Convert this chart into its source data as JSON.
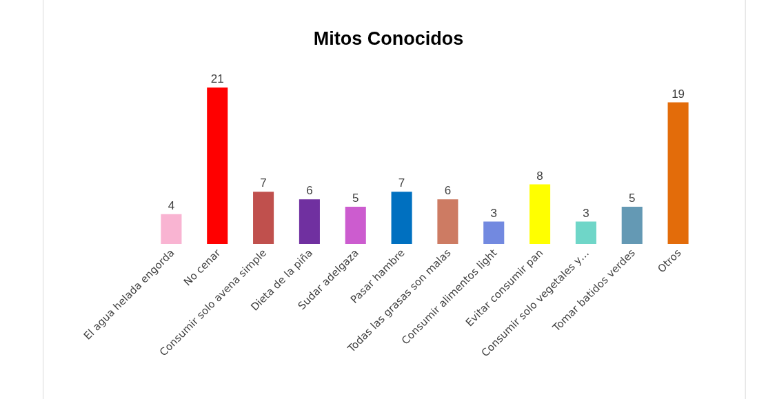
{
  "chart_data": {
    "type": "bar",
    "title": "Mitos Conocidos",
    "categories": [
      "El agua helada engorda",
      "No cenar",
      "Consumir solo avena simple",
      "Dieta de la piña",
      "Sudar adelgaza",
      "Pasar hambre",
      "Todas las grasas son malas",
      "Consumir alimentos light",
      "Evitar consumir pan",
      "Consumir solo vegetales y…",
      "Tomar batidos verdes",
      "Otros"
    ],
    "values": [
      4,
      21,
      7,
      6,
      5,
      7,
      6,
      3,
      8,
      3,
      5,
      19
    ],
    "colors": [
      "#f9b4d2",
      "#ff0000",
      "#c0504d",
      "#7030a0",
      "#cc5ccf",
      "#0070c0",
      "#cd7b63",
      "#7289e0",
      "#ffff00",
      "#6fd6c8",
      "#6499b4",
      "#e36c0a"
    ],
    "data_labels": true,
    "tick_labels": "x"
  }
}
